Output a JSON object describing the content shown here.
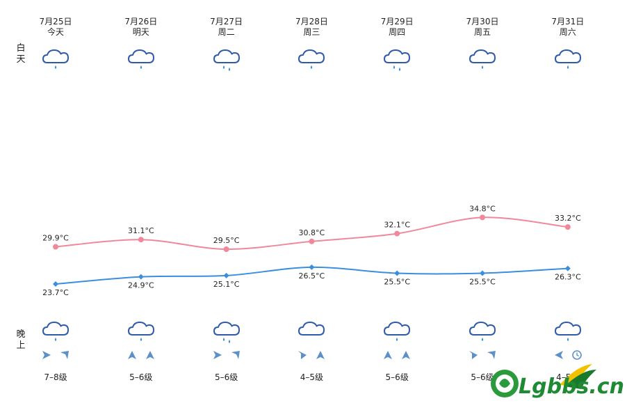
{
  "labels": {
    "day": "白天",
    "night": "晚上"
  },
  "days": [
    {
      "date": "7月25日",
      "weekday": "今天",
      "high": 29.9,
      "low": 23.7,
      "high_label": "29.9°C",
      "low_label": "23.7°C",
      "day_icon": "rain-cloud-icon",
      "night_icon": "rain-cloud-icon",
      "wind_icons": [
        "arrow-right-icon",
        "arrow-upleft-icon"
      ],
      "wind_level": "7–8级"
    },
    {
      "date": "7月26日",
      "weekday": "明天",
      "high": 31.1,
      "low": 24.9,
      "high_label": "31.1°C",
      "low_label": "24.9°C",
      "day_icon": "rain-cloud-icon",
      "night_icon": "rain-cloud-icon",
      "wind_icons": [
        "arrow-up-icon",
        "arrow-up-icon"
      ],
      "wind_level": "5–6级"
    },
    {
      "date": "7月27日",
      "weekday": "周二",
      "high": 29.5,
      "low": 25.1,
      "high_label": "29.5°C",
      "low_label": "25.1°C",
      "day_icon": "heavy-rain-cloud-icon",
      "night_icon": "heavy-rain-cloud-icon",
      "wind_icons": [
        "arrow-right-icon",
        "arrow-upleft-icon"
      ],
      "wind_level": "5–6级"
    },
    {
      "date": "7月28日",
      "weekday": "周三",
      "high": 30.8,
      "low": 26.5,
      "high_label": "30.8°C",
      "low_label": "26.5°C",
      "day_icon": "rain-cloud-icon",
      "night_icon": "cloud-icon",
      "wind_icons": [
        "arrow-downright-icon",
        "arrow-up-icon"
      ],
      "wind_level": "4–5级"
    },
    {
      "date": "7月29日",
      "weekday": "周四",
      "high": 32.1,
      "low": 25.5,
      "high_label": "32.1°C",
      "low_label": "25.5°C",
      "day_icon": "heavy-rain-cloud-icon",
      "night_icon": "rain-cloud-icon",
      "wind_icons": [
        "arrow-up-icon",
        "arrow-up-icon"
      ],
      "wind_level": "5–6级"
    },
    {
      "date": "7月30日",
      "weekday": "周五",
      "high": 34.8,
      "low": 25.5,
      "high_label": "34.8°C",
      "low_label": "25.5°C",
      "day_icon": "rain-cloud-icon",
      "night_icon": "rain-cloud-icon",
      "wind_icons": [
        "arrow-downright-icon",
        "arrow-upleft-icon"
      ],
      "wind_level": "5–6级"
    },
    {
      "date": "7月31日",
      "weekday": "周六",
      "high": 33.2,
      "low": 26.3,
      "high_label": "33.2°C",
      "low_label": "26.3°C",
      "day_icon": "rain-cloud-icon",
      "night_icon": "rain-cloud-icon",
      "wind_icons": [
        "arrow-left-icon",
        "clock-icon"
      ],
      "wind_level": "4–5级"
    }
  ],
  "watermark": {
    "text": "Lgbbs.cn"
  },
  "colors": {
    "high_line": "#f0889c",
    "low_line": "#3a8ee0",
    "icon_stroke": "#2e5aa8",
    "rain_drop": "#3a8ee0",
    "wind_arrow": "#5b90c8"
  }
}
